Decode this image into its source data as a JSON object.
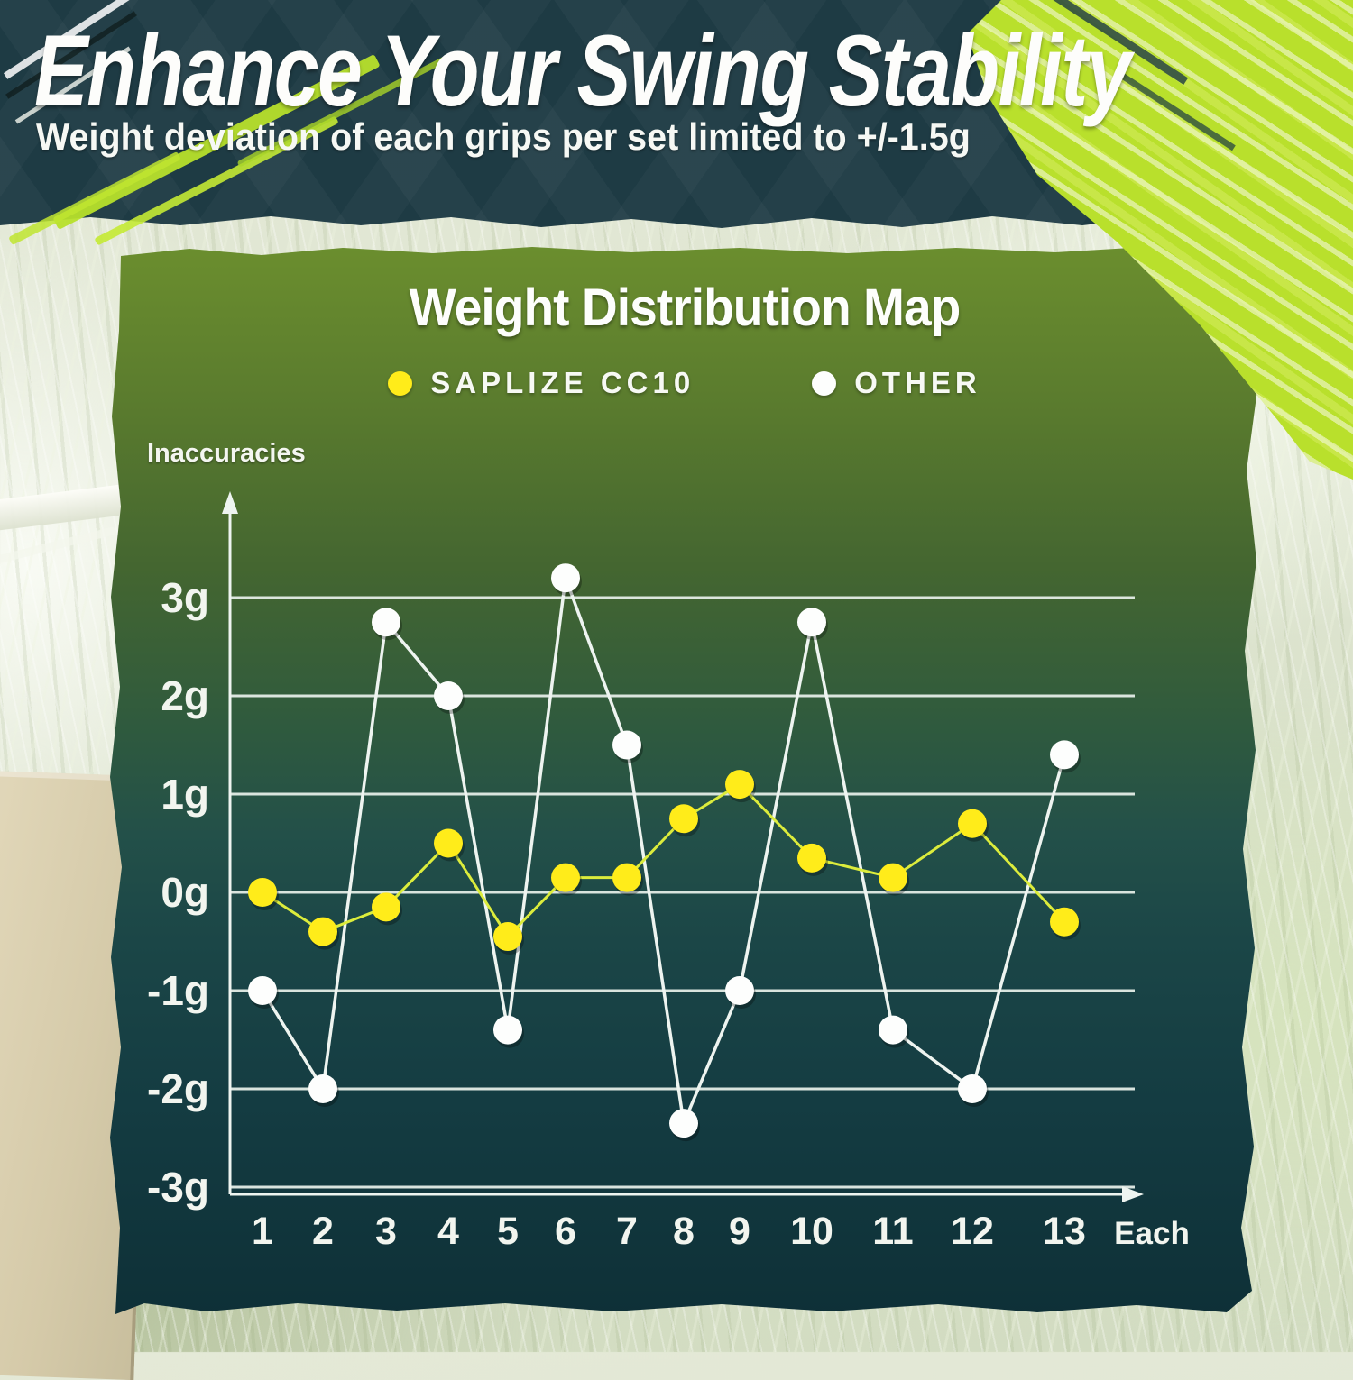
{
  "header": {
    "title": "Enhance Your Swing Stability",
    "subtitle": "Weight deviation of each grips per set limited to +/-1.5g"
  },
  "chart_data": {
    "type": "line",
    "title": "Weight Distribution Map",
    "ylabel": "Inaccuracies",
    "xlabel": "Each",
    "categories": [
      "1",
      "2",
      "3",
      "4",
      "5",
      "6",
      "7",
      "8",
      "9",
      "10",
      "11",
      "12",
      "13"
    ],
    "series": [
      {
        "name": "SAPLIZE CC10",
        "color": "#ffec1a",
        "line_color": "#dcec3c",
        "values": [
          0,
          -0.4,
          -0.15,
          0.5,
          -0.45,
          0.15,
          0.15,
          0.75,
          1.1,
          0.35,
          0.15,
          0.7,
          -0.3
        ]
      },
      {
        "name": "OTHER",
        "color": "#fdfefd",
        "line_color": "#eef4f0",
        "values": [
          -1,
          -2,
          2.75,
          2,
          -1.4,
          3.2,
          1.5,
          -2.35,
          -1,
          2.75,
          -1.4,
          -2,
          1.4
        ]
      }
    ],
    "yticks": [
      {
        "value": 3,
        "label": "3g"
      },
      {
        "value": 2,
        "label": "2g"
      },
      {
        "value": 1,
        "label": "1g"
      },
      {
        "value": 0,
        "label": "0g"
      },
      {
        "value": -1,
        "label": "-1g"
      },
      {
        "value": -2,
        "label": "-2g"
      },
      {
        "value": -3,
        "label": "-3g"
      }
    ],
    "ylim": [
      -3,
      3.6
    ],
    "grid": true,
    "legend_position": "top-center"
  },
  "colors": {
    "accent_lime": "#b9e02c",
    "header_teal": "#1e3b44",
    "panel_top_green": "#6b8e2e",
    "panel_bottom_teal": "#0e3037",
    "saplize_yellow": "#ffec1a",
    "other_white": "#ffffff"
  }
}
